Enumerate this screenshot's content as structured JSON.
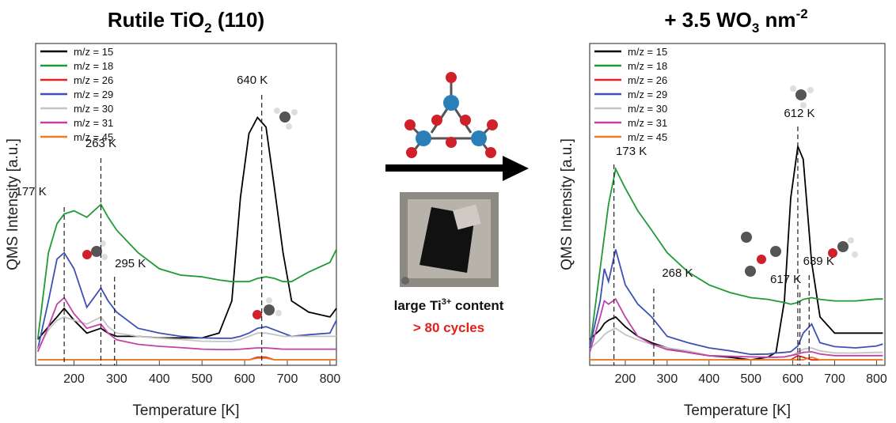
{
  "chart_data": [
    {
      "type": "line",
      "title_parts": [
        "Rutile TiO",
        "2",
        " (110)"
      ],
      "x_label": "Temperature [K]",
      "y_label": "QMS Intensity [a.u.]",
      "xlim": [
        110,
        815
      ],
      "ylim": [
        0,
        100
      ],
      "xticks": [
        200,
        300,
        400,
        500,
        600,
        700,
        800
      ],
      "x": [
        115,
        140,
        160,
        177,
        200,
        230,
        263,
        280,
        300,
        350,
        400,
        450,
        500,
        540,
        570,
        590,
        610,
        630,
        650,
        670,
        690,
        710,
        750,
        800,
        815
      ],
      "series": [
        {
          "name": "m/z = 15",
          "color": "#000000",
          "values": [
            8,
            12,
            15,
            17.7,
            14,
            10,
            11.5,
            10,
            9,
            9,
            8.5,
            8.5,
            8.5,
            10,
            20,
            52,
            72,
            77,
            74,
            55,
            35,
            20,
            16.5,
            15,
            17.7
          ]
        },
        {
          "name": "m/z = 18",
          "color": "#1f9a35",
          "values": [
            8,
            35,
            44,
            47,
            48,
            46,
            50,
            46,
            42,
            35,
            30,
            28,
            27.5,
            26.5,
            26,
            26,
            26,
            27,
            27.5,
            27,
            26,
            26,
            29,
            32,
            36
          ]
        },
        {
          "name": "m/z = 26",
          "color": "#e8201a",
          "values": [
            1.7,
            1.7,
            1.7,
            1.7,
            1.7,
            1.7,
            1.7,
            1.7,
            1.7,
            1.7,
            1.7,
            1.7,
            1.7,
            1.7,
            1.7,
            1.7,
            1.7,
            2.5,
            2.5,
            1.7,
            1.7,
            1.7,
            1.7,
            1.7,
            1.7
          ]
        },
        {
          "name": "m/z = 29",
          "color": "#3e50b4",
          "values": [
            5,
            20,
            33,
            35,
            30,
            18,
            24,
            20,
            16.5,
            11.5,
            10,
            9,
            8.5,
            8.4,
            8.4,
            9,
            10,
            11.5,
            12,
            11,
            10,
            9,
            9.5,
            10,
            14
          ]
        },
        {
          "name": "m/z = 30",
          "color": "#c4c4c4",
          "values": [
            5,
            11,
            14,
            15,
            14,
            12.8,
            15,
            12,
            10,
            9,
            8.4,
            8,
            7.5,
            7.4,
            7.4,
            8,
            9,
            10,
            10,
            9.5,
            9,
            9,
            9,
            9,
            9
          ]
        },
        {
          "name": "m/z = 31",
          "color": "#c243a6",
          "values": [
            4.2,
            12,
            19,
            21,
            16,
            11.5,
            12.8,
            10,
            7.9,
            6.5,
            5.9,
            5.5,
            5,
            4.9,
            4.9,
            5,
            5.2,
            5.4,
            5.4,
            5.2,
            5,
            5,
            5,
            5,
            5
          ]
        },
        {
          "name": "m/z = 45",
          "color": "#f07c22",
          "values": [
            1.7,
            1.7,
            1.7,
            1.7,
            1.7,
            1.7,
            1.7,
            1.7,
            1.7,
            1.7,
            1.7,
            1.7,
            1.7,
            1.7,
            1.7,
            1.7,
            1.7,
            2.2,
            2.2,
            1.7,
            1.7,
            1.7,
            1.7,
            1.7,
            1.7
          ]
        }
      ],
      "annotations": [
        {
          "text": "640 K",
          "x": 640
        },
        {
          "text": "263 K",
          "x": 263
        },
        {
          "text": "177 K",
          "x": 177
        },
        {
          "text": "295 K",
          "x": 295
        }
      ]
    },
    {
      "type": "line",
      "title_parts": [
        "+ 3.5 WO",
        "3",
        " nm",
        "-2"
      ],
      "x_label": "Temperature [K]",
      "y_label": "QMS Intensity [a.u.]",
      "xlim": [
        115,
        820
      ],
      "ylim": [
        0,
        100
      ],
      "xticks": [
        200,
        300,
        400,
        500,
        600,
        700,
        800
      ],
      "x": [
        115,
        140,
        150,
        160,
        177,
        200,
        230,
        263,
        300,
        350,
        400,
        450,
        500,
        540,
        560,
        580,
        595,
        612,
        625,
        645,
        665,
        700,
        750,
        800,
        815
      ],
      "series": [
        {
          "name": "m/z = 15",
          "color": "#000000",
          "values": [
            8,
            11,
            13,
            14,
            15,
            12,
            9,
            7,
            5.4,
            4,
            3,
            2.5,
            1.7,
            2.5,
            4,
            20,
            52,
            68,
            64,
            32,
            15,
            10,
            10,
            10,
            10
          ]
        },
        {
          "name": "m/z = 18",
          "color": "#1f9a35",
          "values": [
            5,
            30,
            40,
            50,
            61,
            55,
            48,
            42,
            35,
            29,
            25,
            22.6,
            21,
            20.5,
            20,
            19.5,
            19,
            19.5,
            20.5,
            21,
            20.5,
            20,
            20,
            20.6,
            20.6
          ]
        },
        {
          "name": "m/z = 26",
          "color": "#e8201a",
          "values": [
            1.7,
            1.7,
            1.7,
            1.7,
            1.7,
            1.7,
            1.7,
            1.7,
            1.7,
            1.7,
            1.7,
            1.7,
            1.7,
            1.7,
            1.7,
            1.7,
            1.7,
            3,
            2.5,
            1.7,
            1.7,
            1.7,
            1.7,
            1.7,
            1.7
          ]
        },
        {
          "name": "m/z = 29",
          "color": "#3e50b4",
          "values": [
            5.4,
            20,
            30,
            26,
            36,
            25,
            19,
            15,
            9,
            7,
            5.4,
            4.5,
            3.4,
            3.5,
            3.8,
            4,
            4.2,
            6,
            10,
            12.8,
            7,
            5.8,
            5.4,
            6,
            6.6
          ]
        },
        {
          "name": "m/z = 30",
          "color": "#c4c4c4",
          "values": [
            5,
            8,
            9.5,
            10.5,
            11.5,
            9.5,
            7.9,
            6.5,
            5.4,
            4.5,
            3,
            2.8,
            2.6,
            2.5,
            2.5,
            2.6,
            3,
            4,
            5,
            5.4,
            4.5,
            3.8,
            3.8,
            4,
            4
          ]
        },
        {
          "name": "m/z = 31",
          "color": "#c243a6",
          "values": [
            4,
            15,
            20,
            19,
            20.6,
            15,
            9,
            6.6,
            4.9,
            4,
            3,
            2.8,
            2.6,
            2.5,
            2.5,
            2.6,
            3,
            3.5,
            4,
            4.2,
            3.5,
            3,
            3,
            3,
            3
          ]
        },
        {
          "name": "m/z = 45",
          "color": "#f07c22",
          "values": [
            1.7,
            1.7,
            1.7,
            1.7,
            1.7,
            1.7,
            1.7,
            1.7,
            1.7,
            1.7,
            1.7,
            1.7,
            1.7,
            1.7,
            1.7,
            1.7,
            1.7,
            1.7,
            1.7,
            2.5,
            1.7,
            1.7,
            1.7,
            1.7,
            1.7
          ]
        }
      ],
      "annotations": [
        {
          "text": "173 K",
          "x": 173
        },
        {
          "text": "268 K",
          "x": 268
        },
        {
          "text": "612 K",
          "x": 612
        },
        {
          "text": "617 K",
          "x": 617
        },
        {
          "text": "639 K",
          "x": 639
        }
      ]
    }
  ],
  "center": {
    "caption_parts": [
      "large Ti",
      "3+",
      " content"
    ],
    "cycles": "> 80 cycles"
  }
}
